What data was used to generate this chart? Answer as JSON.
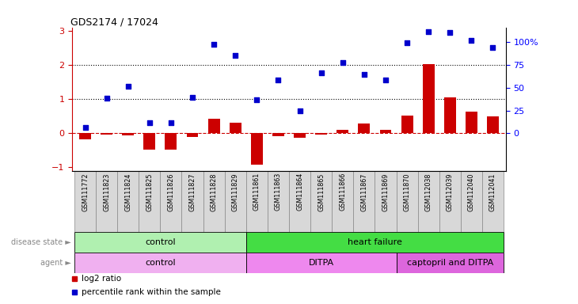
{
  "title": "GDS2174 / 17024",
  "samples": [
    "GSM111772",
    "GSM111823",
    "GSM111824",
    "GSM111825",
    "GSM111826",
    "GSM111827",
    "GSM111828",
    "GSM111829",
    "GSM111861",
    "GSM111863",
    "GSM111864",
    "GSM111865",
    "GSM111866",
    "GSM111867",
    "GSM111869",
    "GSM111870",
    "GSM112038",
    "GSM112039",
    "GSM112040",
    "GSM112041"
  ],
  "log2_ratio": [
    -0.18,
    -0.05,
    -0.07,
    -0.48,
    -0.47,
    -0.1,
    0.42,
    0.3,
    -0.93,
    -0.08,
    -0.12,
    -0.05,
    0.1,
    0.28,
    0.1,
    0.52,
    2.02,
    1.05,
    0.63,
    0.5
  ],
  "percentile_rank": [
    0.18,
    1.02,
    1.38,
    0.32,
    0.32,
    1.06,
    2.6,
    2.28,
    0.98,
    1.55,
    0.65,
    1.78,
    2.08,
    1.72,
    1.55,
    2.65,
    2.97,
    2.95,
    2.72,
    2.5
  ],
  "bar_color": "#cc0000",
  "dot_color": "#0000cc",
  "left_tick_color": "#cc0000",
  "dotline1": 1.0,
  "dotline2": 2.0,
  "ylim": [
    -1.1,
    3.1
  ],
  "yticks_left": [
    -1,
    0,
    1,
    2,
    3
  ],
  "yticks_right_labels": [
    "0",
    "25",
    "50",
    "75",
    "100%"
  ],
  "yticks_right_vals": [
    0.0,
    0.6667,
    1.3333,
    2.0,
    2.6667
  ],
  "disease_state_groups": [
    {
      "label": "control",
      "start": 0,
      "end": 8,
      "color": "#b0f0b0"
    },
    {
      "label": "heart failure",
      "start": 8,
      "end": 20,
      "color": "#44dd44"
    }
  ],
  "agent_groups": [
    {
      "label": "control",
      "start": 0,
      "end": 8,
      "color": "#f0b0f0"
    },
    {
      "label": "DITPA",
      "start": 8,
      "end": 15,
      "color": "#ee88ee"
    },
    {
      "label": "captopril and DITPA",
      "start": 15,
      "end": 20,
      "color": "#dd66dd"
    }
  ],
  "sample_box_color": "#d8d8d8",
  "legend_bar_label": "log2 ratio",
  "legend_dot_label": "percentile rank within the sample",
  "bg_color": "#ffffff"
}
